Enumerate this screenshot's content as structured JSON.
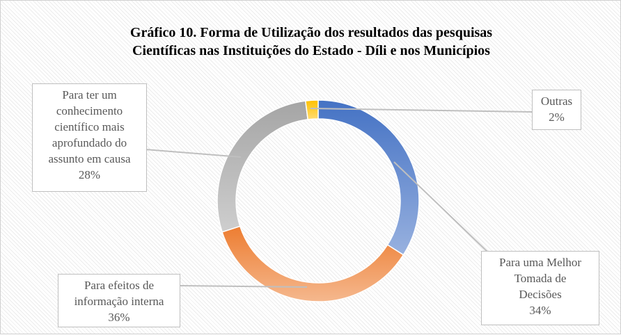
{
  "chart_data": {
    "type": "donut",
    "title": "Gráfico 10. Forma de Utilização dos resultados das pesquisas\nCientíficas nas Instituições do Estado - Díli e nos Municípios",
    "categories": [
      "Para uma Melhor\nTomada de\nDecisões",
      "Para efeitos de\ninformação interna",
      "Para ter um\nconhecimento\ncientífico mais\naprofundado do\nassunto em causa",
      "Outras"
    ],
    "values": [
      34,
      36,
      28,
      2
    ],
    "value_labels": [
      "34%",
      "36%",
      "28%",
      "2%"
    ],
    "colors": [
      "#4472c4",
      "#ed7d31",
      "#a5a5a5",
      "#ffc000"
    ]
  }
}
